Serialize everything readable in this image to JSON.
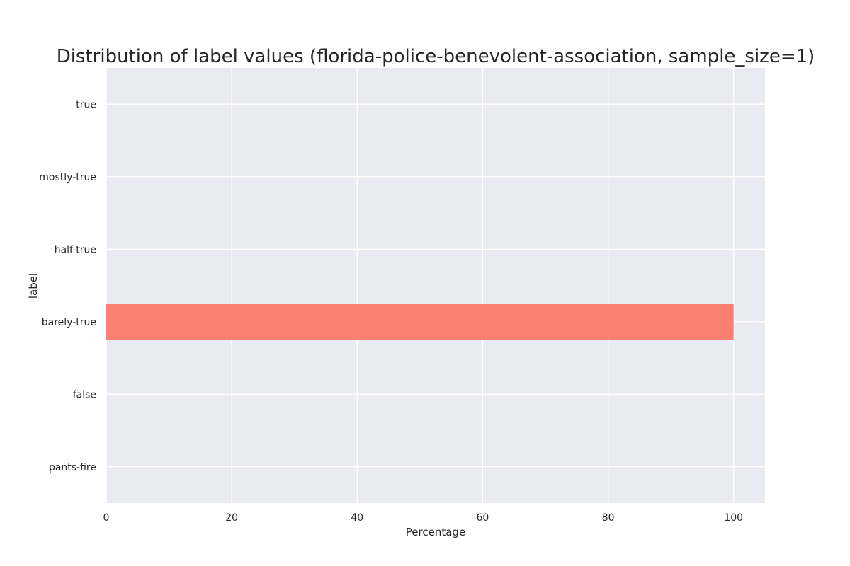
{
  "chart_data": {
    "type": "bar",
    "orientation": "horizontal",
    "title": "Distribution of label values (florida-police-benevolent-association, sample_size=1)",
    "xlabel": "Percentage",
    "ylabel": "label",
    "categories": [
      "true",
      "mostly-true",
      "half-true",
      "barely-true",
      "false",
      "pants-fire"
    ],
    "values": [
      0,
      0,
      0,
      100,
      0,
      0
    ],
    "xlim": [
      0,
      105
    ],
    "xticks": [
      0,
      20,
      40,
      60,
      80,
      100
    ],
    "grid": true,
    "colors": {
      "bar": "#fa8072",
      "plot_background": "#eaeaf2",
      "grid": "#ffffff",
      "text": "#262626"
    }
  }
}
